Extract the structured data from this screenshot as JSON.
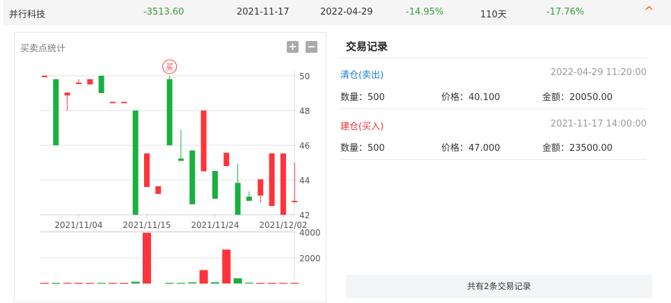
{
  "summary": {
    "name": "并行科技",
    "profit": "-3513.60",
    "buy_date": "2021-11-17",
    "sell_date": "2022-04-29",
    "return": "-14.95%",
    "hold_days": "110天",
    "other_return": "-17.76%",
    "collapse_icon": "chevron-up-icon"
  },
  "colors": {
    "up": "#ff333a",
    "down": "#19b03f",
    "positive_text": "#3a9b3a",
    "accent": "#ff5a00",
    "sell": "#1e7ad6",
    "buy": "#ee3333"
  },
  "chart": {
    "title": "买卖点统计",
    "zoom_in": "+",
    "zoom_out": "−",
    "buy_marker": "买",
    "buy_marker_index": 11
  },
  "chart_data": [
    {
      "type": "candlestick",
      "ylim": [
        42,
        50
      ],
      "y_ticks": [
        "50",
        "48",
        "46",
        "44",
        "42"
      ],
      "x_ticks": [
        {
          "index": 3,
          "label": "2021/11/04"
        },
        {
          "index": 9,
          "label": "2021/11/15"
        },
        {
          "index": 15,
          "label": "2021/11/24"
        },
        {
          "index": 21,
          "label": "2021/12/02"
        }
      ],
      "candles": [
        {
          "o": 50.0,
          "c": 50.0,
          "h": 50.0,
          "l": 50.0
        },
        {
          "o": 49.8,
          "c": 46.0,
          "h": 49.8,
          "l": 46.0
        },
        {
          "o": 48.87,
          "c": 49.03,
          "h": 49.03,
          "l": 48.0
        },
        {
          "o": 49.6,
          "c": 49.6,
          "h": 49.8,
          "l": 49.6
        },
        {
          "o": 49.5,
          "c": 49.8,
          "h": 49.8,
          "l": 49.5
        },
        {
          "o": 50.0,
          "c": 49.0,
          "h": 50.0,
          "l": 49.0
        },
        {
          "o": 48.5,
          "c": 48.5,
          "h": 48.5,
          "l": 48.5
        },
        {
          "o": 48.5,
          "c": 48.5,
          "h": 48.5,
          "l": 48.5
        },
        {
          "o": 48.0,
          "c": 42.0,
          "h": 48.0,
          "l": 42.0
        },
        {
          "o": 43.6,
          "c": 45.53,
          "h": 45.53,
          "l": 43.6
        },
        {
          "o": 43.2,
          "c": 43.64,
          "h": 43.64,
          "l": 43.2
        },
        {
          "o": 49.8,
          "c": 46.0,
          "h": 50.0,
          "l": 46.0
        },
        {
          "o": 45.23,
          "c": 45.1,
          "h": 46.88,
          "l": 45.1
        },
        {
          "o": 45.7,
          "c": 42.6,
          "h": 45.7,
          "l": 42.6
        },
        {
          "o": 44.5,
          "c": 48.0,
          "h": 48.0,
          "l": 44.5
        },
        {
          "o": 44.52,
          "c": 42.92,
          "h": 44.52,
          "l": 42.92
        },
        {
          "o": 44.8,
          "c": 45.57,
          "h": 45.57,
          "l": 44.8
        },
        {
          "o": 43.83,
          "c": 42.0,
          "h": 44.95,
          "l": 42.0
        },
        {
          "o": 43.04,
          "c": 42.8,
          "h": 43.35,
          "l": 42.8
        },
        {
          "o": 43.1,
          "c": 44.04,
          "h": 44.04,
          "l": 42.68
        },
        {
          "o": 42.5,
          "c": 45.53,
          "h": 45.53,
          "l": 42.5
        },
        {
          "o": 42.0,
          "c": 45.53,
          "h": 45.53,
          "l": 42.0
        },
        {
          "o": 42.72,
          "c": 42.8,
          "h": 45.0,
          "l": 42.72
        }
      ]
    },
    {
      "type": "bar",
      "ylim": [
        0,
        4000
      ],
      "y_ticks": [
        "4000",
        "2000"
      ],
      "values": [
        20,
        20,
        60,
        20,
        30,
        20,
        30,
        20,
        140,
        3950,
        0,
        50,
        40,
        90,
        1050,
        100,
        2640,
        410,
        70,
        30,
        20,
        20,
        30
      ]
    }
  ],
  "records": {
    "title": "交易记录",
    "items": [
      {
        "type": "清仓(卖出)",
        "side": "sell",
        "time": "2022-04-29 11:20:00",
        "qty_label": "数量：",
        "qty": "500",
        "price_label": "价格：",
        "price": "40.100",
        "amount_label": "金额：",
        "amount": "20050.00"
      },
      {
        "type": "建仓(买入)",
        "side": "buy",
        "time": "2021-11-17 14:00:00",
        "qty_label": "数量：",
        "qty": "500",
        "price_label": "价格：",
        "price": "47.000",
        "amount_label": "金额：",
        "amount": "23500.00"
      }
    ],
    "footer": "共有2条交易记录"
  }
}
